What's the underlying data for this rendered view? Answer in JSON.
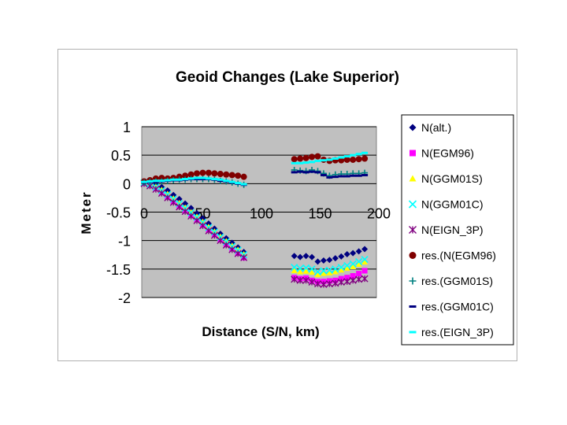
{
  "chart_data": {
    "type": "scatter",
    "title": "Geoid Changes (Lake Superior)",
    "xlabel": "Distance (S/N, km)",
    "ylabel": "Meter",
    "xlim": [
      0,
      200
    ],
    "ylim": [
      -2,
      1
    ],
    "x_ticks": [
      "0",
      "50",
      "100",
      "150",
      "200"
    ],
    "y_ticks": [
      "1",
      "0.5",
      "0",
      "-0.5",
      "-1",
      "-1.5",
      "-2"
    ],
    "plot_background": "#c0c0c0",
    "grid": true,
    "legend_position": "right",
    "series": [
      {
        "name": "N(alt.)",
        "marker": "diamond",
        "color": "#000080",
        "x": [
          2,
          7,
          12,
          17,
          22,
          27,
          32,
          37,
          42,
          47,
          52,
          57,
          62,
          67,
          72,
          77,
          82,
          87,
          130,
          135,
          140,
          145,
          150,
          155,
          160,
          165,
          170,
          175,
          180,
          185,
          190
        ],
        "y": [
          0.02,
          0.01,
          -0.02,
          -0.06,
          -0.12,
          -0.2,
          -0.27,
          -0.35,
          -0.43,
          -0.52,
          -0.61,
          -0.7,
          -0.79,
          -0.88,
          -0.96,
          -1.04,
          -1.12,
          -1.2,
          -1.27,
          -1.29,
          -1.27,
          -1.29,
          -1.37,
          -1.35,
          -1.34,
          -1.31,
          -1.28,
          -1.24,
          -1.22,
          -1.19,
          -1.15
        ]
      },
      {
        "name": "N(EGM96)",
        "marker": "square",
        "color": "#ff00ff",
        "x": [
          2,
          7,
          12,
          17,
          22,
          27,
          32,
          37,
          42,
          47,
          52,
          57,
          62,
          67,
          72,
          77,
          82,
          87,
          130,
          135,
          140,
          145,
          150,
          155,
          160,
          165,
          170,
          175,
          180,
          185,
          190
        ],
        "y": [
          0.01,
          -0.02,
          -0.08,
          -0.15,
          -0.23,
          -0.31,
          -0.39,
          -0.47,
          -0.55,
          -0.63,
          -0.72,
          -0.81,
          -0.89,
          -0.98,
          -1.06,
          -1.14,
          -1.22,
          -1.3,
          -1.65,
          -1.67,
          -1.66,
          -1.7,
          -1.72,
          -1.72,
          -1.71,
          -1.7,
          -1.67,
          -1.65,
          -1.62,
          -1.58,
          -1.53
        ]
      },
      {
        "name": "N(GGM01S)",
        "marker": "triangle",
        "color": "#ffff00",
        "x": [
          2,
          7,
          12,
          17,
          22,
          27,
          32,
          37,
          42,
          47,
          52,
          57,
          62,
          67,
          72,
          77,
          82,
          87,
          130,
          135,
          140,
          145,
          150,
          155,
          160,
          165,
          170,
          175,
          180,
          185,
          190
        ],
        "y": [
          0.03,
          0.0,
          -0.05,
          -0.11,
          -0.18,
          -0.26,
          -0.34,
          -0.42,
          -0.5,
          -0.58,
          -0.67,
          -0.76,
          -0.84,
          -0.93,
          -1.01,
          -1.09,
          -1.16,
          -1.24,
          -1.53,
          -1.55,
          -1.54,
          -1.56,
          -1.6,
          -1.58,
          -1.57,
          -1.55,
          -1.52,
          -1.49,
          -1.46,
          -1.42,
          -1.38
        ]
      },
      {
        "name": "N(GGM01C)",
        "marker": "x",
        "color": "#00ffff",
        "x": [
          2,
          7,
          12,
          17,
          22,
          27,
          32,
          37,
          42,
          47,
          52,
          57,
          62,
          67,
          72,
          77,
          82,
          87,
          130,
          135,
          140,
          145,
          150,
          155,
          160,
          165,
          170,
          175,
          180,
          185,
          190
        ],
        "y": [
          0.02,
          -0.01,
          -0.06,
          -0.12,
          -0.19,
          -0.27,
          -0.35,
          -0.43,
          -0.51,
          -0.59,
          -0.68,
          -0.77,
          -0.85,
          -0.94,
          -1.02,
          -1.1,
          -1.17,
          -1.25,
          -1.47,
          -1.49,
          -1.48,
          -1.5,
          -1.55,
          -1.53,
          -1.52,
          -1.5,
          -1.47,
          -1.44,
          -1.41,
          -1.37,
          -1.33
        ]
      },
      {
        "name": "N(EIGN_3P)",
        "marker": "star",
        "color": "#800080",
        "x": [
          2,
          7,
          12,
          17,
          22,
          27,
          32,
          37,
          42,
          47,
          52,
          57,
          62,
          67,
          72,
          77,
          82,
          87,
          130,
          135,
          140,
          145,
          150,
          155,
          160,
          165,
          170,
          175,
          180,
          185,
          190
        ],
        "y": [
          0.0,
          -0.04,
          -0.1,
          -0.17,
          -0.25,
          -0.33,
          -0.41,
          -0.49,
          -0.57,
          -0.65,
          -0.74,
          -0.83,
          -0.91,
          -1.0,
          -1.08,
          -1.16,
          -1.23,
          -1.3,
          -1.68,
          -1.7,
          -1.7,
          -1.73,
          -1.76,
          -1.77,
          -1.76,
          -1.75,
          -1.73,
          -1.72,
          -1.7,
          -1.68,
          -1.67
        ]
      },
      {
        "name": "res.(N(EGM96)",
        "marker": "circle",
        "color": "#800000",
        "x": [
          2,
          7,
          12,
          17,
          22,
          27,
          32,
          37,
          42,
          47,
          52,
          57,
          62,
          67,
          72,
          77,
          82,
          87,
          130,
          135,
          140,
          145,
          150,
          155,
          160,
          165,
          170,
          175,
          180,
          185,
          190
        ],
        "y": [
          0.04,
          0.06,
          0.09,
          0.1,
          0.09,
          0.1,
          0.12,
          0.14,
          0.16,
          0.18,
          0.19,
          0.19,
          0.18,
          0.17,
          0.16,
          0.15,
          0.14,
          0.12,
          0.43,
          0.44,
          0.45,
          0.47,
          0.48,
          0.42,
          0.4,
          0.41,
          0.41,
          0.42,
          0.42,
          0.43,
          0.44
        ]
      },
      {
        "name": "res.(GGM01S)",
        "marker": "plus",
        "color": "#008080",
        "x": [
          2,
          7,
          12,
          17,
          22,
          27,
          32,
          37,
          42,
          47,
          52,
          57,
          62,
          67,
          72,
          77,
          82,
          87,
          130,
          135,
          140,
          145,
          150,
          155,
          160,
          165,
          170,
          175,
          180,
          185,
          190
        ],
        "y": [
          0.02,
          0.03,
          0.04,
          0.04,
          0.05,
          0.06,
          0.07,
          0.07,
          0.08,
          0.08,
          0.08,
          0.08,
          0.07,
          0.05,
          0.04,
          0.02,
          0.0,
          -0.02,
          0.24,
          0.23,
          0.22,
          0.24,
          0.22,
          0.18,
          0.14,
          0.16,
          0.17,
          0.17,
          0.18,
          0.18,
          0.19
        ]
      },
      {
        "name": "res.(GGM01C)",
        "marker": "dash",
        "color": "#000080",
        "x": [
          2,
          7,
          12,
          17,
          22,
          27,
          32,
          37,
          42,
          47,
          52,
          57,
          62,
          67,
          72,
          77,
          82,
          87,
          130,
          135,
          140,
          145,
          150,
          155,
          160,
          165,
          170,
          175,
          180,
          185,
          190
        ],
        "y": [
          0.02,
          0.03,
          0.03,
          0.04,
          0.05,
          0.06,
          0.06,
          0.07,
          0.08,
          0.08,
          0.08,
          0.08,
          0.07,
          0.05,
          0.04,
          0.02,
          0.0,
          -0.02,
          0.2,
          0.21,
          0.2,
          0.21,
          0.2,
          0.15,
          0.11,
          0.12,
          0.13,
          0.13,
          0.14,
          0.14,
          0.15
        ]
      },
      {
        "name": "res.(EIGN_3P)",
        "marker": "dash",
        "color": "#00ffff",
        "x": [
          2,
          7,
          12,
          17,
          22,
          27,
          32,
          37,
          42,
          47,
          52,
          57,
          62,
          67,
          72,
          77,
          82,
          87,
          130,
          135,
          140,
          145,
          150,
          155,
          160,
          165,
          170,
          175,
          180,
          185,
          190
        ],
        "y": [
          0.03,
          0.04,
          0.05,
          0.05,
          0.06,
          0.07,
          0.07,
          0.08,
          0.09,
          0.1,
          0.1,
          0.09,
          0.08,
          0.07,
          0.05,
          0.03,
          0.01,
          -0.01,
          0.36,
          0.36,
          0.37,
          0.38,
          0.4,
          0.41,
          0.42,
          0.44,
          0.46,
          0.48,
          0.5,
          0.52,
          0.54
        ]
      }
    ]
  }
}
